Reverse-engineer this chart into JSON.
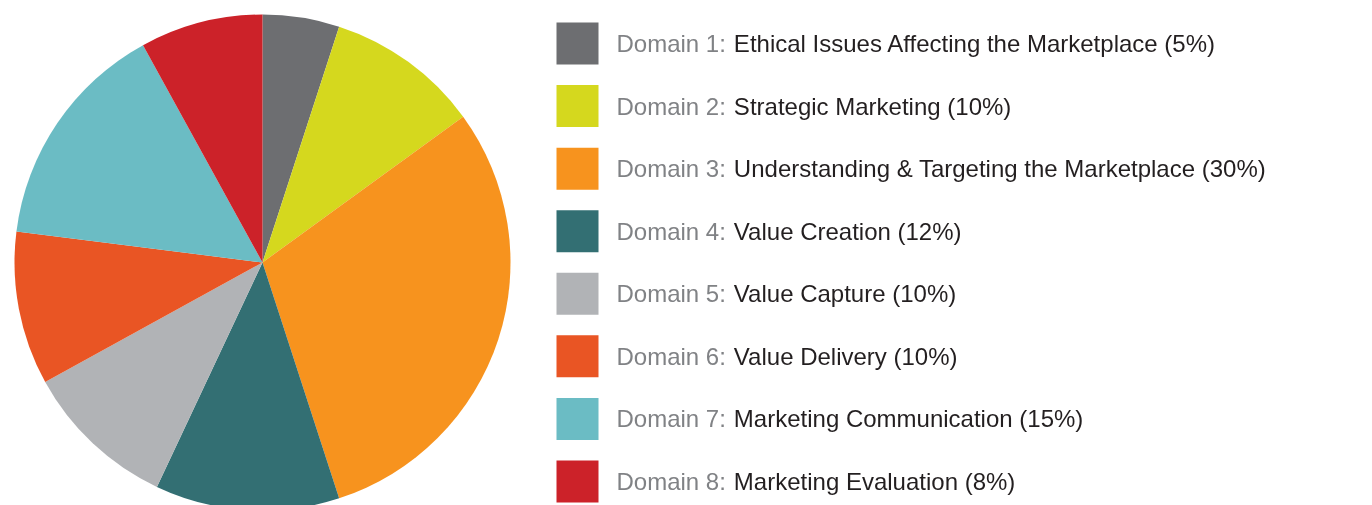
{
  "chart_data": {
    "type": "pie",
    "categories": [
      "Domain 1: Ethical Issues Affecting the Marketplace (5%)",
      "Domain 2: Strategic Marketing (10%)",
      "Domain 3: Understanding & Targeting the Marketplace (30%)",
      "Domain 4: Value Creation (12%)",
      "Domain 5: Value Capture (10%)",
      "Domain 6: Value Delivery (10%)",
      "Domain 7: Marketing Communication (15%)",
      "Domain 8: Marketing Evaluation (8%)"
    ],
    "values": [
      5,
      10,
      30,
      12,
      10,
      10,
      15,
      8
    ],
    "colors": [
      "#6d6e71",
      "#d5d81e",
      "#f7931e",
      "#336f73",
      "#b1b3b6",
      "#e95524",
      "#6bbcc4",
      "#cc2229"
    ],
    "legend": "right"
  }
}
